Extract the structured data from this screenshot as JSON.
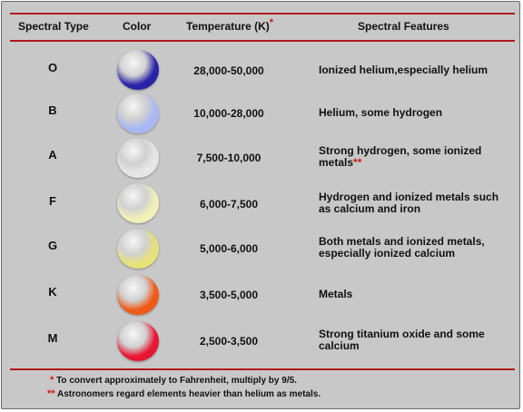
{
  "headers": {
    "type": "Spectral Type",
    "color": "Color",
    "temperature": "Temperature (K)",
    "temperature_mark": "*",
    "features": "Spectral Features"
  },
  "rows": [
    {
      "type": "O",
      "temp": "28,000-50,000",
      "features": "Ionized helium,especially helium",
      "mark": "",
      "ball_color": "#2a22a8"
    },
    {
      "type": "B",
      "temp": "10,000-28,000",
      "features": "Helium, some hydrogen",
      "mark": "",
      "ball_color": "#a9b8f4"
    },
    {
      "type": "A",
      "temp": "7,500-10,000",
      "features": "Strong hydrogen, some ionized metals",
      "mark": "**",
      "ball_color": "#e6e6e6"
    },
    {
      "type": "F",
      "temp": "6,000-7,500",
      "features": "Hydrogen and ionized metals such as calcium and iron",
      "mark": "",
      "ball_color": "#f2efb8"
    },
    {
      "type": "G",
      "temp": "5,000-6,000",
      "features": "Both metals and ionized metals, especially ionized calcium",
      "mark": "",
      "ball_color": "#e6e27a"
    },
    {
      "type": "K",
      "temp": "3,500-5,000",
      "features": "Metals",
      "mark": "",
      "ball_color": "#f05a18"
    },
    {
      "type": "M",
      "temp": "2,500-3,500",
      "features": "Strong titanium oxide and some calcium",
      "mark": "",
      "ball_color": "#e81632"
    }
  ],
  "notes": [
    {
      "mark": "*",
      "text": "To convert approximately to Fahrenheit, multiply by 9/5."
    },
    {
      "mark": "**",
      "text": "Astronomers regard elements heavier than helium as metals."
    }
  ],
  "colors": {
    "rule": "#b0181c",
    "star": "#d01818",
    "background": "#c8c8c8"
  }
}
